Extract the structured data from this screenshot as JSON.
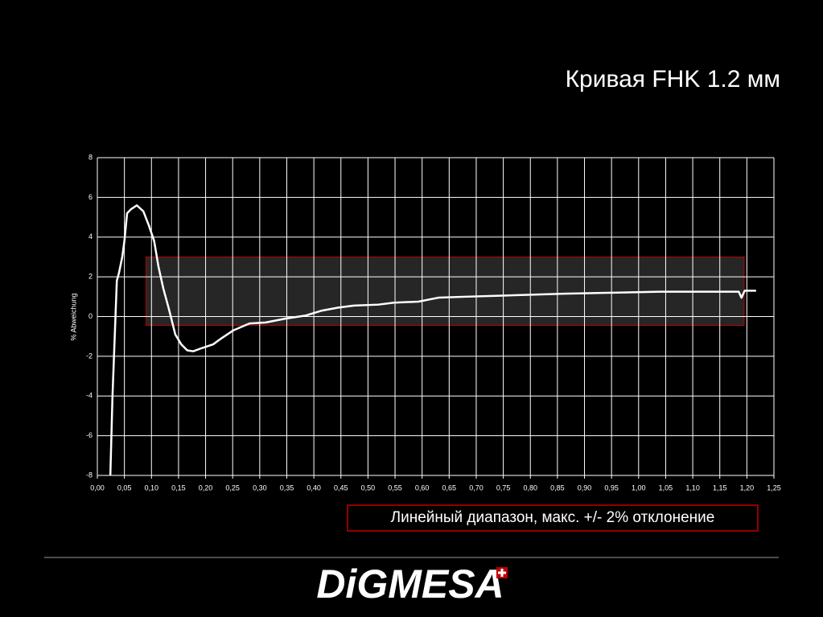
{
  "chart_data": {
    "type": "line",
    "title": "Кривая FHK 1.2 мм",
    "y_label": "% Abweichung",
    "annotation": "Линейный диапазон, макс. +/- 2% отклонение",
    "band": {
      "xlim": [
        0.09,
        1.195
      ],
      "ylim": [
        -0.45,
        3
      ],
      "color": "#c00000"
    },
    "xlim": [
      0,
      1.25
    ],
    "ylim": [
      -8,
      8
    ],
    "grid": true,
    "xticks": [
      {
        "value": 0,
        "label": "0,00"
      },
      {
        "value": 0.05,
        "label": "0,05"
      },
      {
        "value": 0.1,
        "label": "0,10"
      },
      {
        "value": 0.15,
        "label": "0,15"
      },
      {
        "value": 0.2,
        "label": "0,20"
      },
      {
        "value": 0.25,
        "label": "0,25"
      },
      {
        "value": 0.3,
        "label": "0,30"
      },
      {
        "value": 0.35,
        "label": "0,35"
      },
      {
        "value": 0.4,
        "label": "0,40"
      },
      {
        "value": 0.45,
        "label": "0,45"
      },
      {
        "value": 0.5,
        "label": "0,50"
      },
      {
        "value": 0.55,
        "label": "0,55"
      },
      {
        "value": 0.6,
        "label": "0,60"
      },
      {
        "value": 0.65,
        "label": "0,65"
      },
      {
        "value": 0.7,
        "label": "0,70"
      },
      {
        "value": 0.75,
        "label": "0,75"
      },
      {
        "value": 0.8,
        "label": "0,80"
      },
      {
        "value": 0.85,
        "label": "0,85"
      },
      {
        "value": 0.9,
        "label": "0,90"
      },
      {
        "value": 0.95,
        "label": "0,95"
      },
      {
        "value": 1,
        "label": "1,00"
      },
      {
        "value": 1.05,
        "label": "1,05"
      },
      {
        "value": 1.1,
        "label": "1,10"
      },
      {
        "value": 1.15,
        "label": "1,15"
      },
      {
        "value": 1.2,
        "label": "1,20"
      },
      {
        "value": 1.25,
        "label": "1,25"
      }
    ],
    "yticks": [
      -8,
      -6,
      -4,
      -2,
      0,
      2,
      4,
      6,
      8
    ],
    "color": "#ffffff",
    "x": [
      0.024,
      0.028,
      0.036,
      0.04,
      0.046,
      0.05,
      0.055,
      0.062,
      0.073,
      0.085,
      0.095,
      0.105,
      0.113,
      0.122,
      0.132,
      0.144,
      0.155,
      0.166,
      0.177,
      0.192,
      0.214,
      0.229,
      0.251,
      0.281,
      0.311,
      0.348,
      0.385,
      0.415,
      0.445,
      0.474,
      0.519,
      0.548,
      0.593,
      0.63,
      0.682,
      0.742,
      0.801,
      0.861,
      0.95,
      1.039,
      1.128,
      1.185,
      1.19,
      1.196,
      1.217
    ],
    "values": [
      -8,
      -4,
      1.8,
      2.2,
      3,
      3.8,
      5.2,
      5.4,
      5.6,
      5.3,
      4.6,
      3.8,
      2.5,
      1.4,
      0.4,
      -0.9,
      -1.4,
      -1.7,
      -1.75,
      -1.6,
      -1.4,
      -1.1,
      -0.7,
      -0.35,
      -0.3,
      -0.1,
      0.05,
      0.3,
      0.45,
      0.55,
      0.6,
      0.7,
      0.75,
      0.95,
      1.0,
      1.05,
      1.1,
      1.15,
      1.2,
      1.25,
      1.25,
      1.25,
      0.95,
      1.3,
      1.3
    ]
  },
  "brand": "DiGMESA"
}
